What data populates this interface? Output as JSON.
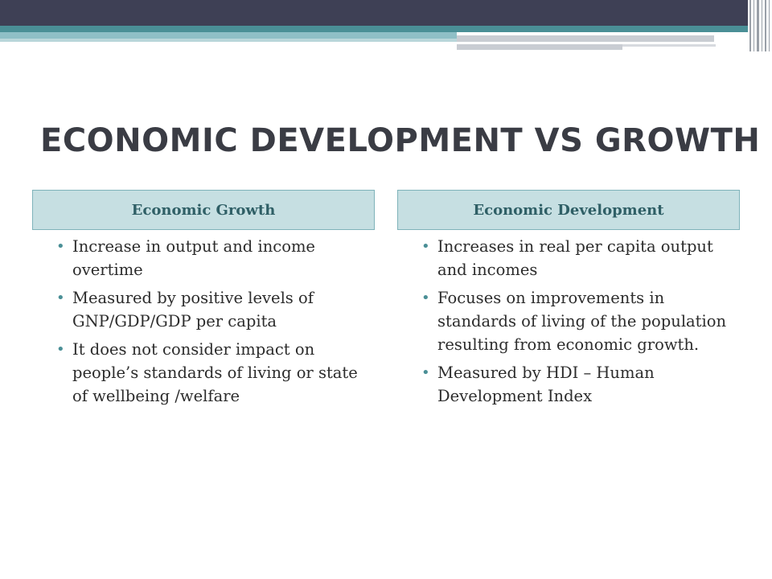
{
  "slide": {
    "title": "ECONOMIC DEVELOPMENT VS GROWTH",
    "columns": [
      {
        "header": "Economic Growth",
        "bullets": [
          "Increase in output and income overtime",
          "Measured by positive levels of GNP/GDP/GDP per capita",
          "It does not consider impact on people’s standards of living or state of wellbeing /welfare"
        ]
      },
      {
        "header": "Economic Development",
        "bullets": [
          "Increases in real per capita output and incomes",
          "Focuses on improvements in standards of living of the population resulting from economic growth.",
          "Measured by HDI – Human Development Index"
        ]
      }
    ]
  },
  "colors": {
    "banner_dark": "#3e4055",
    "accent_teal": "#4a8f96",
    "header_fill": "#c6dfe2",
    "header_text": "#2f5f66"
  }
}
